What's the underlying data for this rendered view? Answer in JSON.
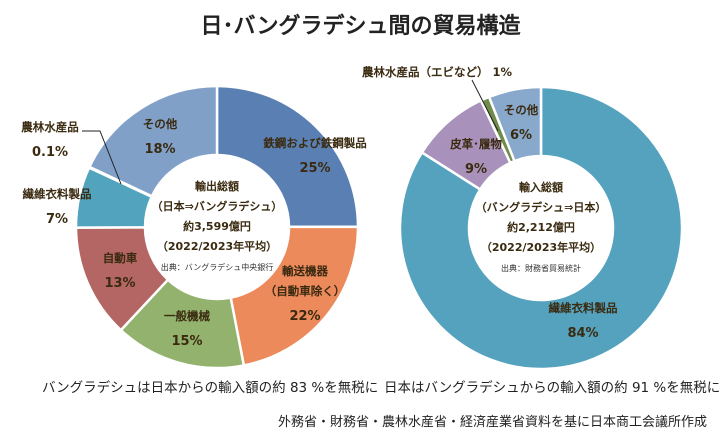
{
  "title": "日･バングラデシュ間の貿易構造",
  "chart_data": [
    {
      "type": "pie",
      "variant": "donut",
      "center_text": [
        "輸出総額",
        "（日本⇒バングラデシュ）",
        "約3,599億円",
        "（2022/2023年平均）"
      ],
      "source": "出典：バングラデシュ中央銀行",
      "categories": [
        "鉄鋼および鉄鋼製品",
        "輸送機器（自動車除く）",
        "一般機械",
        "自動車",
        "繊維衣料製品",
        "農林水産品",
        "その他"
      ],
      "values": [
        25,
        22,
        15,
        13,
        7,
        0.1,
        18
      ],
      "value_labels": [
        "25%",
        "22%",
        "15%",
        "13%",
        "7%",
        "0.1%",
        "18%"
      ],
      "colors": [
        "#5a80b3",
        "#ec8a5c",
        "#93b26d",
        "#b36664",
        "#52a3bd",
        "#4a6a9a",
        "#80a0c8"
      ],
      "note": "バングラデシュは日本からの輸入額の約 83 %を無税に"
    },
    {
      "type": "pie",
      "variant": "donut",
      "center_text": [
        "輸入総額",
        "（バングラデシュ⇒日本）",
        "約2,212億円",
        "（2022/2023年平均）"
      ],
      "source": "出典：財務省貿易統計",
      "categories": [
        "繊維衣料製品",
        "皮革･履物",
        "農林水産品（エビなど）",
        "その他"
      ],
      "values": [
        84,
        9,
        1,
        6
      ],
      "value_labels": [
        "84%",
        "9%",
        "1%",
        "6%"
      ],
      "colors": [
        "#54a2bd",
        "#a892bb",
        "#6f8c4a",
        "#88a8cc"
      ],
      "note": "日本はバングラデシュからの輸入額の約 91 %を無税に"
    }
  ],
  "footer": "外務省・財務省・農林水産省・経済産業省資料を基に日本商工会議所作成"
}
